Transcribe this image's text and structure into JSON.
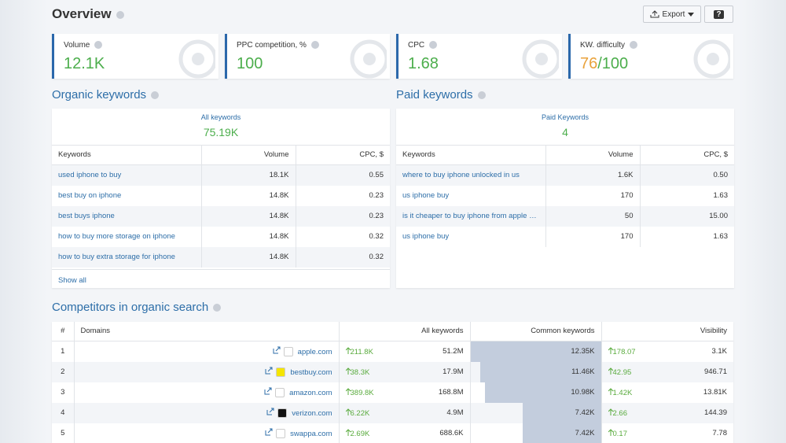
{
  "header": {
    "title": "Overview",
    "export": "Export",
    "help": "?"
  },
  "metrics": [
    {
      "label": "Volume",
      "value": "12.1K"
    },
    {
      "label": "PPC competition, %",
      "value": "100"
    },
    {
      "label": "CPC",
      "value": "1.68"
    },
    {
      "label": "KW. difficulty",
      "value": "76",
      "suffix": "/100"
    }
  ],
  "organic": {
    "title": "Organic keywords",
    "summary_label": "All keywords",
    "summary_value": "75.19K",
    "columns": [
      "Keywords",
      "Volume",
      "CPC, $"
    ],
    "rows": [
      [
        "used iphone to buy",
        "18.1K",
        "0.55"
      ],
      [
        "best buy on iphone",
        "14.8K",
        "0.23"
      ],
      [
        "best buys iphone",
        "14.8K",
        "0.23"
      ],
      [
        "how to buy more storage on iphone",
        "14.8K",
        "0.32"
      ],
      [
        "how to buy extra storage for iphone",
        "14.8K",
        "0.32"
      ]
    ],
    "show_all": "Show all"
  },
  "paid": {
    "title": "Paid keywords",
    "summary_label": "Paid Keywords",
    "summary_value": "4",
    "columns": [
      "Keywords",
      "Volume",
      "CPC, $"
    ],
    "rows": [
      [
        "where to buy iphone unlocked in us",
        "1.6K",
        "0.50"
      ],
      [
        "us iphone buy",
        "170",
        "1.63"
      ],
      [
        "is it cheaper to buy iphone from apple o...",
        "50",
        "15.00"
      ],
      [
        "us iphone buy",
        "170",
        "1.63"
      ]
    ]
  },
  "competitors": {
    "title": "Competitors in organic search",
    "columns": [
      "#",
      "Domains",
      "All keywords",
      "Common keywords",
      "Visibility"
    ],
    "rows": [
      {
        "rank": "1",
        "domain": "apple.com",
        "all_change": "211.8K",
        "all": "51.2M",
        "common": "12.35K",
        "vis_change": "178.07",
        "vis": "3.1K"
      },
      {
        "rank": "2",
        "domain": "bestbuy.com",
        "all_change": "38.3K",
        "all": "17.9M",
        "common": "11.46K",
        "vis_change": "42.95",
        "vis": "946.71"
      },
      {
        "rank": "3",
        "domain": "amazon.com",
        "all_change": "389.8K",
        "all": "168.8M",
        "common": "10.98K",
        "vis_change": "1.42K",
        "vis": "13.81K"
      },
      {
        "rank": "4",
        "domain": "verizon.com",
        "all_change": "6.22K",
        "all": "4.9M",
        "common": "7.42K",
        "vis_change": "2.66",
        "vis": "144.39"
      },
      {
        "rank": "5",
        "domain": "swappa.com",
        "all_change": "2.69K",
        "all": "688.6K",
        "common": "7.42K",
        "vis_change": "0.17",
        "vis": "7.78"
      }
    ]
  }
}
